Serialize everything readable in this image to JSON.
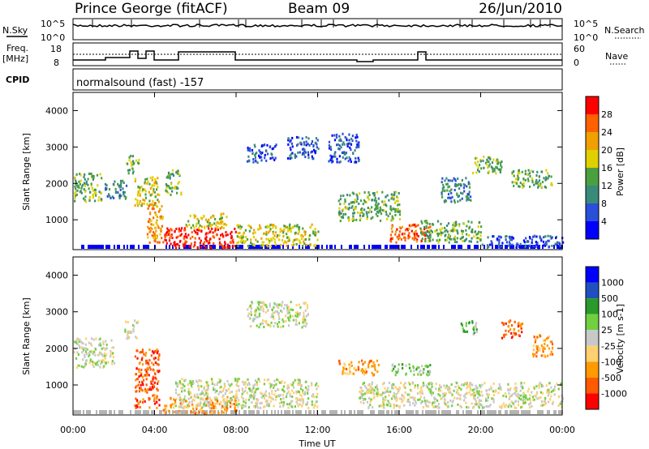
{
  "header": {
    "station": "Prince George (fitACF)",
    "beam": "Beam 09",
    "date": "26/Jun/2010"
  },
  "panels": {
    "noise": {
      "left_label": "N.Sky",
      "right_label": "N.Search",
      "left_ticks": [
        "10^5",
        "10^0"
      ],
      "right_ticks": [
        "10^5",
        "10^0"
      ]
    },
    "freq": {
      "left_label_1": "Freq.",
      "left_label_2": "[MHz]",
      "right_label": "Nave",
      "left_ticks": [
        "18",
        "8"
      ],
      "right_ticks": [
        "60",
        "0"
      ]
    },
    "cpid": {
      "label": "CPID",
      "text": "normalsound (fast) -157"
    }
  },
  "colors": {
    "power": [
      "#0000ff",
      "#2a4fd9",
      "#3a8a7a",
      "#4aa040",
      "#e0d000",
      "#f0a000",
      "#ff6000",
      "#ff0000"
    ],
    "velocity": [
      "#ff0000",
      "#ff5a00",
      "#ff9a00",
      "#ffd070",
      "#c8c8c8",
      "#70d040",
      "#2a9a2a",
      "#2050c0",
      "#0000ff"
    ],
    "ground": "#b4b4b4"
  },
  "chart_data": [
    {
      "type": "heatmap",
      "name": "power",
      "xlabel": "",
      "ylabel": "Slant Range [km]",
      "ylim": [
        180,
        4500
      ],
      "yticks": [
        "1000",
        "2000",
        "3000",
        "4000"
      ],
      "colorbar_label": "Power [dB]",
      "colorbar_ticks": [
        "4",
        "8",
        "12",
        "16",
        "20",
        "24",
        "28"
      ],
      "patches": [
        {
          "x": [
            0.0,
            1.4
          ],
          "y": [
            1500,
            2300
          ],
          "level": 3
        },
        {
          "x": [
            1.5,
            2.6
          ],
          "y": [
            1600,
            2100
          ],
          "level": 2
        },
        {
          "x": [
            2.6,
            3.2
          ],
          "y": [
            2300,
            2800
          ],
          "level": 3
        },
        {
          "x": [
            3.0,
            4.2
          ],
          "y": [
            1400,
            2200
          ],
          "level": 4
        },
        {
          "x": [
            4.5,
            5.3
          ],
          "y": [
            1700,
            2400
          ],
          "level": 3
        },
        {
          "x": [
            3.6,
            4.4
          ],
          "y": [
            400,
            1500
          ],
          "level": 5
        },
        {
          "x": [
            4.4,
            8.0
          ],
          "y": [
            250,
            800
          ],
          "level": 7
        },
        {
          "x": [
            5.5,
            7.5
          ],
          "y": [
            800,
            1200
          ],
          "level": 4
        },
        {
          "x": [
            8.0,
            12.0
          ],
          "y": [
            300,
            900
          ],
          "level": 4
        },
        {
          "x": [
            8.5,
            10.0
          ],
          "y": [
            2600,
            3100
          ],
          "level": 1
        },
        {
          "x": [
            10.5,
            12.0
          ],
          "y": [
            2700,
            3300
          ],
          "level": 1
        },
        {
          "x": [
            12.5,
            14.0
          ],
          "y": [
            2600,
            3400
          ],
          "level": 1
        },
        {
          "x": [
            13.0,
            16.0
          ],
          "y": [
            1000,
            1800
          ],
          "level": 3
        },
        {
          "x": [
            15.5,
            17.5
          ],
          "y": [
            400,
            900
          ],
          "level": 6
        },
        {
          "x": [
            17.0,
            20.0
          ],
          "y": [
            400,
            1000
          ],
          "level": 3
        },
        {
          "x": [
            18.0,
            19.5
          ],
          "y": [
            1500,
            2200
          ],
          "level": 2
        },
        {
          "x": [
            19.5,
            21.0
          ],
          "y": [
            2300,
            2800
          ],
          "level": 3
        },
        {
          "x": [
            21.5,
            23.5
          ],
          "y": [
            1900,
            2400
          ],
          "level": 3
        },
        {
          "x": [
            20.0,
            24.0
          ],
          "y": [
            250,
            600
          ],
          "level": 1
        }
      ]
    },
    {
      "type": "heatmap",
      "name": "velocity",
      "xlabel": "Time UT",
      "ylabel": "Slant Range [km]",
      "ylim": [
        180,
        4500
      ],
      "xlim": [
        0,
        24
      ],
      "xticks": [
        "00:00",
        "04:00",
        "08:00",
        "12:00",
        "16:00",
        "20:00",
        "00:00"
      ],
      "yticks": [
        "1000",
        "2000",
        "3000",
        "4000"
      ],
      "colorbar_label": "Velocity [m s-1]",
      "colorbar_ticks": [
        "1000",
        "500",
        "100",
        "25",
        "-25",
        "-100",
        "-500",
        "-1000"
      ],
      "patches": [
        {
          "x": [
            0.0,
            2.0
          ],
          "y": [
            1500,
            2300
          ],
          "level": 4
        },
        {
          "x": [
            2.5,
            3.2
          ],
          "y": [
            2300,
            2800
          ],
          "level": 4
        },
        {
          "x": [
            3.0,
            4.2
          ],
          "y": [
            400,
            2000
          ],
          "level": 1
        },
        {
          "x": [
            4.4,
            8.0
          ],
          "y": [
            250,
            700
          ],
          "level": 2
        },
        {
          "x": [
            5.0,
            12.0
          ],
          "y": [
            400,
            1200
          ],
          "level": 4
        },
        {
          "x": [
            8.5,
            11.5
          ],
          "y": [
            2600,
            3300
          ],
          "level": 4
        },
        {
          "x": [
            13.0,
            15.0
          ],
          "y": [
            1300,
            1700
          ],
          "level": 2
        },
        {
          "x": [
            15.5,
            17.5
          ],
          "y": [
            1300,
            1600
          ],
          "level": 5
        },
        {
          "x": [
            14.0,
            24.0
          ],
          "y": [
            400,
            1100
          ],
          "level": 4
        },
        {
          "x": [
            19.0,
            19.8
          ],
          "y": [
            2400,
            2800
          ],
          "level": 5
        },
        {
          "x": [
            21.0,
            22.0
          ],
          "y": [
            2300,
            2800
          ],
          "level": 1
        },
        {
          "x": [
            22.5,
            23.5
          ],
          "y": [
            1800,
            2400
          ],
          "level": 2
        }
      ]
    }
  ]
}
